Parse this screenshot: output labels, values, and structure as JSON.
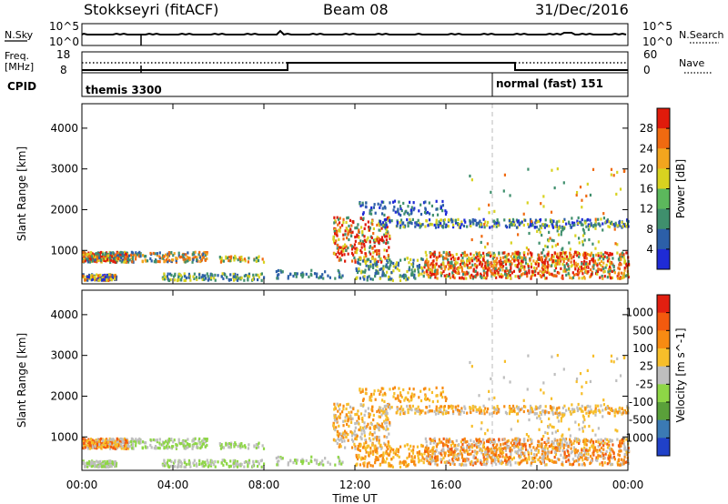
{
  "header": {
    "station": "Stokkseyri (fitACF)",
    "beam": "Beam 08",
    "date": "31/Dec/2016"
  },
  "sky_panel": {
    "left_label": "N.Sky",
    "right_label": "N.Search",
    "left_top_tick": "10^5",
    "left_bottom_tick": "10^0",
    "right_top_tick": "10^5",
    "right_bottom_tick": "10^0"
  },
  "freq_panel": {
    "left_label_1": "Freq.",
    "left_label_2": "[MHz]",
    "right_label": "Nave",
    "left_top_tick": "18",
    "left_bottom_tick": "8",
    "right_top_tick": "60",
    "right_bottom_tick": "0"
  },
  "cpid_panel": {
    "label": "CPID",
    "mode_1": "themis 3300",
    "mode_2": "normal (fast) 151"
  },
  "colors": {
    "power_scale": [
      "#1f2bd6",
      "#2c5fa8",
      "#3f8f6d",
      "#5cb85c",
      "#d8d220",
      "#f2a51e",
      "#f06a10",
      "#e01b0b"
    ],
    "velocity_scale": [
      "#2041c8",
      "#3b7ab4",
      "#5aa03a",
      "#8ed646",
      "#bebebe",
      "#f7be2a",
      "#f78b12",
      "#f35a0e",
      "#e21f10"
    ]
  },
  "chart_data": [
    {
      "type": "heatmap",
      "title": "Power",
      "xlabel": "Time UT",
      "ylabel": "Slant Range [km]",
      "x_ticks": [
        "00:00",
        "04:00",
        "08:00",
        "12:00",
        "16:00",
        "20:00",
        "00:00"
      ],
      "xlim_hours": [
        0,
        24
      ],
      "y_ticks": [
        1000,
        2000,
        3000,
        4000
      ],
      "ylim": [
        180,
        4600
      ],
      "colorbar_label": "Power [dB]",
      "colorbar_ticks": [
        4,
        8,
        12,
        16,
        20,
        24,
        28
      ],
      "mode_change_hour": 18
    },
    {
      "type": "heatmap",
      "title": "Velocity",
      "xlabel": "Time UT",
      "ylabel": "Slant Range [km]",
      "x_ticks": [
        "00:00",
        "04:00",
        "08:00",
        "12:00",
        "16:00",
        "20:00",
        "00:00"
      ],
      "xlim_hours": [
        0,
        24
      ],
      "y_ticks": [
        1000,
        2000,
        3000,
        4000
      ],
      "ylim": [
        180,
        4600
      ],
      "colorbar_label": "Velocity [m s^-1]",
      "colorbar_ticks": [
        "1000",
        "500",
        "100",
        "25",
        "-25",
        "-100",
        "-500",
        "-1000"
      ],
      "mode_change_hour": 18
    }
  ],
  "axis": {
    "time_label": "Time UT"
  }
}
